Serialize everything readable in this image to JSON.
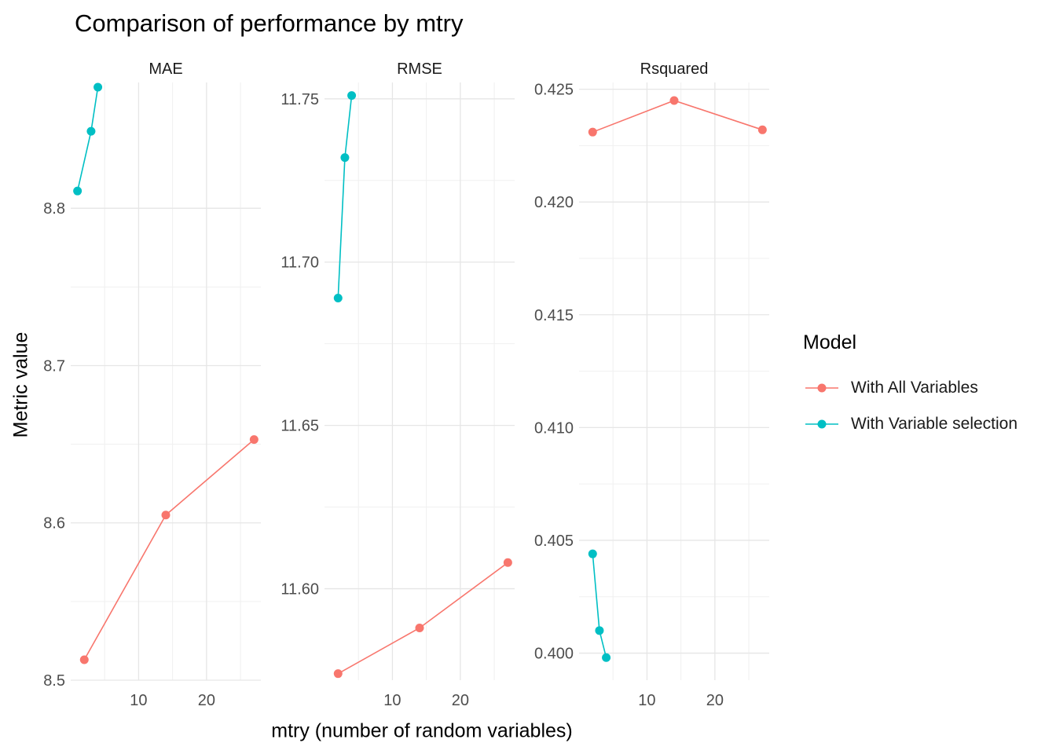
{
  "chart_data": {
    "type": "line",
    "title": "Comparison of performance by mtry",
    "xlabel": "mtry (number of random variables)",
    "ylabel": "Metric value",
    "legend": {
      "title": "Model",
      "position": "right",
      "entries": [
        {
          "label": "With All Variables",
          "color": "#F8766D"
        },
        {
          "label": "With Variable selection",
          "color": "#00BFC4"
        }
      ]
    },
    "x_ticks": [
      10,
      20
    ],
    "xlim": [
      0,
      28
    ],
    "grid": true,
    "panels": [
      {
        "title": "MAE",
        "ylim": [
          8.5,
          8.88
        ],
        "y_ticks": [
          8.5,
          8.6,
          8.7,
          8.8
        ],
        "y_tick_labels": [
          "8.5",
          "8.6",
          "8.7",
          "8.8"
        ],
        "series": [
          {
            "name": "With All Variables",
            "x": [
              2,
              14,
              27
            ],
            "y": [
              8.513,
              8.605,
              8.653
            ]
          },
          {
            "name": "With Variable selection",
            "x": [
              1,
              3,
              4
            ],
            "y": [
              8.811,
              8.849,
              8.877
            ]
          }
        ]
      },
      {
        "title": "RMSE",
        "ylim": [
          11.572,
          11.755
        ],
        "y_ticks": [
          11.6,
          11.65,
          11.7,
          11.75
        ],
        "y_tick_labels": [
          "11.60",
          "11.65",
          "11.70",
          "11.75"
        ],
        "series": [
          {
            "name": "With All Variables",
            "x": [
              2,
              14,
              27
            ],
            "y": [
              11.574,
              11.588,
              11.608
            ]
          },
          {
            "name": "With Variable selection",
            "x": [
              2,
              3,
              4
            ],
            "y": [
              11.689,
              11.732,
              11.751
            ]
          }
        ]
      },
      {
        "title": "Rsquared",
        "ylim": [
          0.3988,
          0.4253
        ],
        "y_ticks": [
          0.4,
          0.405,
          0.41,
          0.415,
          0.42,
          0.425
        ],
        "y_tick_labels": [
          "0.400",
          "0.405",
          "0.410",
          "0.415",
          "0.420",
          "0.425"
        ],
        "series": [
          {
            "name": "With All Variables",
            "x": [
              2,
              14,
              27
            ],
            "y": [
              0.4231,
              0.4245,
              0.4232
            ]
          },
          {
            "name": "With Variable selection",
            "x": [
              2,
              3,
              4
            ],
            "y": [
              0.4044,
              0.401,
              0.3998
            ]
          }
        ]
      }
    ]
  }
}
